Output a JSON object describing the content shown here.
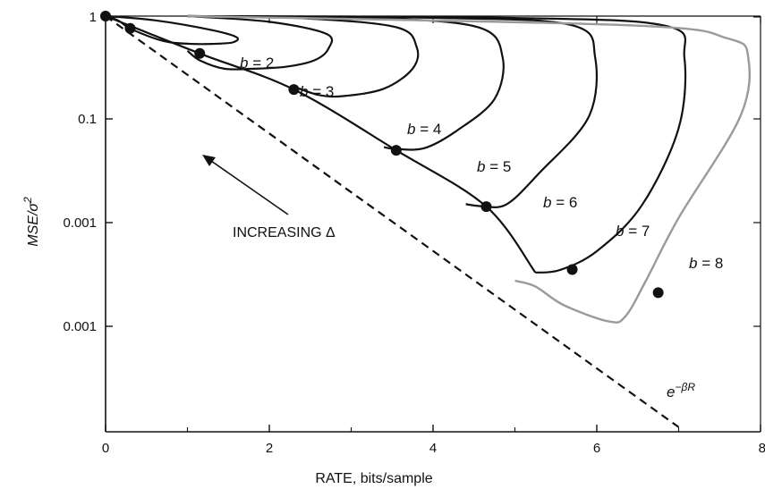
{
  "chart_data": {
    "type": "line",
    "title": "",
    "xlabel": "RATE, bits/sample",
    "ylabel": "MSE/σ²",
    "xlim": [
      0,
      8
    ],
    "x_ticks": [
      "0",
      "2",
      "4",
      "6",
      "8"
    ],
    "y_ticks": [
      "1",
      "0.1",
      "0.001",
      "0.001"
    ],
    "y_scale": "log",
    "grid": false,
    "colors": {
      "curves": "#111111",
      "b8": "#9a9a9a",
      "bound": "#111111"
    },
    "series": [
      {
        "name": "b = 2",
        "points": [
          [
            0.0,
            1.0
          ],
          [
            0.6,
            0.85
          ],
          [
            1.3,
            0.58
          ],
          [
            1.6,
            0.44
          ],
          [
            1.55,
            0.36
          ],
          [
            1.3,
            0.34
          ],
          [
            1.05,
            0.34
          ],
          [
            0.8,
            0.36
          ],
          [
            0.6,
            0.42
          ],
          [
            0.3,
            0.62
          ],
          [
            0.15,
            0.85
          ],
          [
            0.0,
            1.0
          ]
        ]
      },
      {
        "name": "b = 3",
        "points": [
          [
            1.0,
            1.0
          ],
          [
            2.0,
            0.8
          ],
          [
            2.7,
            0.5
          ],
          [
            2.72,
            0.28
          ],
          [
            2.55,
            0.18
          ],
          [
            2.2,
            0.14
          ],
          [
            1.8,
            0.13
          ],
          [
            1.45,
            0.13
          ],
          [
            1.15,
            0.18
          ],
          [
            1.0,
            0.26
          ]
        ]
      },
      {
        "name": "b = 4",
        "points": [
          [
            1.0,
            1.0
          ],
          [
            2.4,
            0.92
          ],
          [
            3.55,
            0.65
          ],
          [
            3.8,
            0.3
          ],
          [
            3.75,
            0.13
          ],
          [
            3.4,
            0.06
          ],
          [
            2.9,
            0.045
          ],
          [
            2.6,
            0.047
          ],
          [
            2.3,
            0.065
          ]
        ]
      },
      {
        "name": "b = 5",
        "points": [
          [
            1.0,
            1.0
          ],
          [
            3.2,
            0.93
          ],
          [
            4.55,
            0.65
          ],
          [
            4.85,
            0.2
          ],
          [
            4.75,
            0.04
          ],
          [
            4.3,
            0.012
          ],
          [
            3.9,
            0.006
          ],
          [
            3.55,
            0.0058
          ],
          [
            3.4,
            0.0062
          ]
        ]
      },
      {
        "name": "b = 6",
        "points": [
          [
            1.0,
            1.0
          ],
          [
            4.1,
            0.93
          ],
          [
            5.7,
            0.7
          ],
          [
            5.98,
            0.2
          ],
          [
            5.9,
            0.02
          ],
          [
            5.3,
            0.0023
          ],
          [
            4.9,
            0.00068
          ],
          [
            4.6,
            0.00063
          ],
          [
            4.4,
            0.00068
          ]
        ]
      },
      {
        "name": "b = 7",
        "points": [
          [
            1.0,
            1.0
          ],
          [
            5.0,
            0.93
          ],
          [
            6.85,
            0.68
          ],
          [
            7.07,
            0.2
          ],
          [
            7.0,
            0.013
          ],
          [
            6.55,
            0.00065
          ],
          [
            6.0,
            0.00011
          ],
          [
            5.55,
            5.3e-05
          ],
          [
            5.25,
            4.8e-05
          ]
        ]
      },
      {
        "name": "b = 8",
        "points": [
          [
            1.0,
            1.0
          ],
          [
            6.4,
            0.7
          ],
          [
            7.6,
            0.42
          ],
          [
            7.85,
            0.2
          ],
          [
            7.75,
            0.02
          ],
          [
            7.0,
            0.0004
          ],
          [
            6.6,
            3.5e-05
          ],
          [
            6.35,
            8.8e-06
          ],
          [
            6.15,
            7.2e-06
          ],
          [
            5.6,
            1.35e-05
          ],
          [
            5.25,
            2.8e-05
          ],
          [
            5.0,
            3.5e-05
          ]
        ]
      }
    ],
    "bound": {
      "label": "e−βR",
      "points": [
        [
          0.0,
          1.0
        ],
        [
          7.0,
          1.2e-07
        ]
      ]
    },
    "markers": [
      [
        0.3,
        0.62
      ],
      [
        1.15,
        0.235
      ],
      [
        2.3,
        0.058
      ],
      [
        3.55,
        0.0055
      ],
      [
        4.65,
        0.00062
      ],
      [
        5.7,
        5.4e-05
      ],
      [
        6.75,
        2.2e-05
      ]
    ],
    "annotations": {
      "arrow_text": "INCREASING Δ"
    }
  }
}
